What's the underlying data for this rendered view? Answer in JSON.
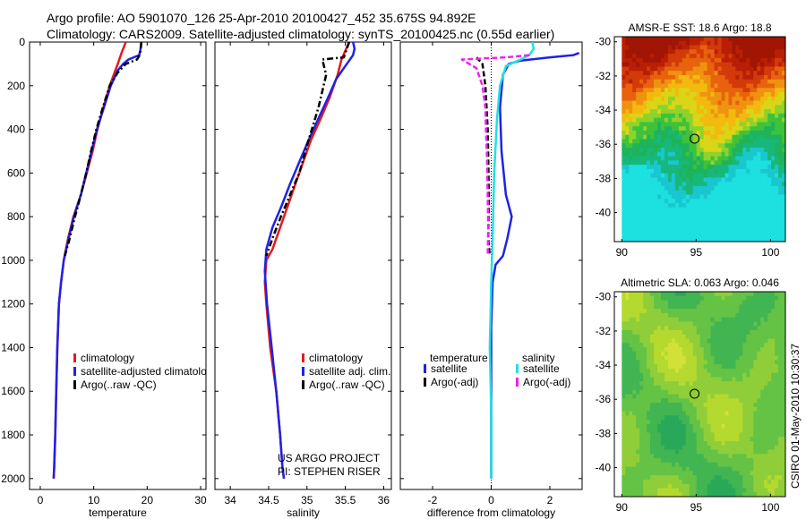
{
  "header": {
    "line1": "Argo profile: AO 5901070_126 25-Apr-2010 20100427_452 35.675S 94.892E",
    "line2": "Climatology: CARS2009. Satellite-adjusted climatology: synTS_20100425.nc (0.55d earlier)"
  },
  "colors": {
    "climatology": "#e41a1c",
    "satellite": "#1f22e6",
    "argo": "#000000",
    "sat_sal": "#22e0e0",
    "argo_sal": "#ee22ee"
  },
  "chart_data": [
    {
      "type": "line",
      "name": "temperature",
      "xlabel": "temperature",
      "xlim": [
        -2,
        31
      ],
      "ylim": [
        0,
        2050
      ],
      "xticks": [
        0,
        10,
        20,
        30
      ],
      "yticks": [
        0,
        200,
        400,
        600,
        800,
        1000,
        1200,
        1400,
        1600,
        1800,
        2000
      ],
      "series": [
        {
          "name": "climatology",
          "color": "#e41a1c",
          "style": "solid",
          "x": [
            16,
            15.2,
            14.5,
            13.0,
            11.8,
            10.7,
            9.8,
            8.7,
            7.6,
            6.2,
            5.2,
            4.4,
            3.9,
            3.5,
            3.2,
            3.0,
            2.8,
            2.6,
            2.5
          ],
          "y": [
            0,
            50,
            100,
            200,
            300,
            400,
            500,
            600,
            700,
            800,
            900,
            1000,
            1100,
            1200,
            1400,
            1600,
            1800,
            1950,
            2000
          ]
        },
        {
          "name": "satellite-adjusted climatology",
          "color": "#1f22e6",
          "style": "solid",
          "x": [
            18.9,
            18.8,
            18.7,
            18.5,
            16.5,
            15.5,
            14.5,
            13.2,
            11.9,
            10.6,
            9.6,
            8.6,
            7.6,
            6.3,
            5.3,
            4.4,
            3.9,
            3.5,
            3.2,
            3.0,
            2.8,
            2.6,
            2.5
          ],
          "y": [
            0,
            20,
            40,
            60,
            80,
            100,
            130,
            200,
            300,
            400,
            500,
            600,
            700,
            800,
            900,
            1000,
            1100,
            1200,
            1400,
            1600,
            1800,
            1950,
            2000
          ]
        },
        {
          "name": "Argo(..raw -QC)",
          "color": "#000000",
          "style": "dashdot",
          "x": [
            18.9,
            18.8,
            18.6,
            18.1,
            16.0,
            14.5,
            13.0,
            11.7,
            10.5,
            9.5,
            8.6,
            7.6,
            6.5,
            5.5,
            4.6
          ],
          "y": [
            0,
            30,
            60,
            80,
            100,
            140,
            200,
            300,
            400,
            500,
            600,
            700,
            800,
            900,
            980
          ]
        }
      ],
      "legend": [
        "climatology",
        "satellite-adjusted climatolo",
        "Argo(..raw -QC)"
      ]
    },
    {
      "type": "line",
      "name": "salinity",
      "xlabel": "salinity",
      "xlim": [
        33.8,
        36.1
      ],
      "ylim": [
        0,
        2050
      ],
      "xticks": [
        34,
        34.5,
        35,
        35.5,
        36
      ],
      "xticklabels": [
        "34",
        "34.5",
        "35",
        "35.5",
        "36"
      ],
      "series": [
        {
          "name": "climatology",
          "color": "#e41a1c",
          "style": "solid",
          "x": [
            35.55,
            35.45,
            35.4,
            35.3,
            35.18,
            35.05,
            34.95,
            34.85,
            34.75,
            34.65,
            34.55,
            34.47,
            34.45,
            34.47,
            34.52,
            34.6,
            34.65,
            34.68,
            34.7
          ],
          "y": [
            0,
            80,
            150,
            250,
            350,
            450,
            550,
            650,
            750,
            850,
            950,
            1000,
            1100,
            1200,
            1400,
            1600,
            1800,
            1950,
            2000
          ]
        },
        {
          "name": "satellite adj. clim.",
          "color": "#1f22e6",
          "style": "solid",
          "x": [
            35.6,
            35.62,
            35.6,
            35.5,
            35.38,
            35.28,
            35.15,
            35.02,
            34.9,
            34.78,
            34.67,
            34.55,
            34.47,
            34.45,
            34.48,
            34.54,
            34.6,
            34.65,
            34.68,
            34.7
          ],
          "y": [
            0,
            30,
            60,
            110,
            170,
            250,
            350,
            450,
            550,
            650,
            750,
            850,
            950,
            1050,
            1200,
            1400,
            1600,
            1800,
            1950,
            2000
          ]
        },
        {
          "name": "Argo(..raw -QC)",
          "color": "#000000",
          "style": "dashdot",
          "x": [
            35.55,
            35.48,
            35.2,
            35.25,
            35.15,
            35.02,
            34.9,
            34.78,
            34.66,
            34.55,
            34.47
          ],
          "y": [
            0,
            70,
            80,
            150,
            300,
            450,
            600,
            700,
            800,
            900,
            980
          ]
        }
      ],
      "legend": [
        "climatology",
        "satellite adj. clim.",
        "Argo(..raw -QC)"
      ],
      "annotation": [
        "US ARGO PROJECT",
        "PI: STEPHEN RISER"
      ]
    },
    {
      "type": "line",
      "name": "difference",
      "xlabel": "difference from climatology",
      "xlim": [
        -3.1,
        3.1
      ],
      "ylim": [
        0,
        2050
      ],
      "xticks": [
        -2,
        0,
        2
      ],
      "series": [
        {
          "name": "temperature satellite",
          "color": "#1f22e6",
          "style": "solid",
          "x": [
            3.0,
            2.8,
            2.0,
            1.0,
            0.6,
            0.4,
            0.3,
            0.35,
            0.5,
            0.7,
            0.55,
            0.4,
            0.15,
            0.05,
            0.0,
            0.0,
            0.0,
            0.0
          ],
          "y": [
            50,
            60,
            70,
            85,
            100,
            150,
            300,
            500,
            700,
            800,
            900,
            980,
            1020,
            1100,
            1300,
            1600,
            1800,
            2000
          ]
        },
        {
          "name": "temperature Argo(-adj)",
          "color": "#000000",
          "style": "dashed",
          "x": [
            -0.5,
            -0.3,
            -0.2,
            -0.12,
            -0.08,
            -0.1,
            -0.05
          ],
          "y": [
            70,
            100,
            200,
            400,
            700,
            900,
            980
          ]
        },
        {
          "name": "salinity satellite",
          "color": "#22e0e0",
          "style": "solid",
          "x": [
            1.4,
            1.45,
            1.3,
            1.0,
            0.5,
            0.3,
            0.2,
            0.1,
            0.05,
            0.0,
            -0.05,
            0.0,
            0.0
          ],
          "y": [
            0,
            30,
            60,
            80,
            110,
            200,
            350,
            600,
            900,
            1100,
            1400,
            1700,
            2000
          ]
        },
        {
          "name": "salinity Argo(-adj)",
          "color": "#ee22ee",
          "style": "dashed",
          "x": [
            1.3,
            0.5,
            -1.0,
            -0.5,
            -0.3,
            -0.2,
            -0.18,
            -0.15,
            -0.12,
            -0.1,
            -0.12
          ],
          "y": [
            60,
            70,
            80,
            120,
            200,
            300,
            400,
            500,
            700,
            850,
            980
          ]
        }
      ],
      "legend_temperature": [
        "temperature",
        "satellite",
        "Argo(-adj)"
      ],
      "legend_salinity": [
        "salinity",
        "satellite",
        "Argo(-adj)"
      ]
    },
    {
      "type": "heatmap",
      "name": "sst_map",
      "title": "AMSR-E SST: 18.6 Argo: 18.8",
      "xlim": [
        89.5,
        101
      ],
      "ylim": [
        -41.7,
        -29.7
      ],
      "xticks": [
        90,
        95,
        100
      ],
      "yticks": [
        -30,
        -32,
        -34,
        -36,
        -38,
        -40
      ],
      "point": {
        "lon": 94.892,
        "lat": -35.675
      }
    },
    {
      "type": "heatmap",
      "name": "sla_map",
      "title": "Altimetric SLA: 0.063 Argo: 0.046",
      "xlim": [
        89.5,
        101
      ],
      "ylim": [
        -41.7,
        -29.7
      ],
      "xticks": [
        90,
        95,
        100
      ],
      "yticks": [
        -30,
        -32,
        -34,
        -36,
        -38,
        -40
      ],
      "point": {
        "lon": 94.892,
        "lat": -35.675
      }
    }
  ],
  "side_label": "CSIRO 01-May-2010 10:30:37"
}
